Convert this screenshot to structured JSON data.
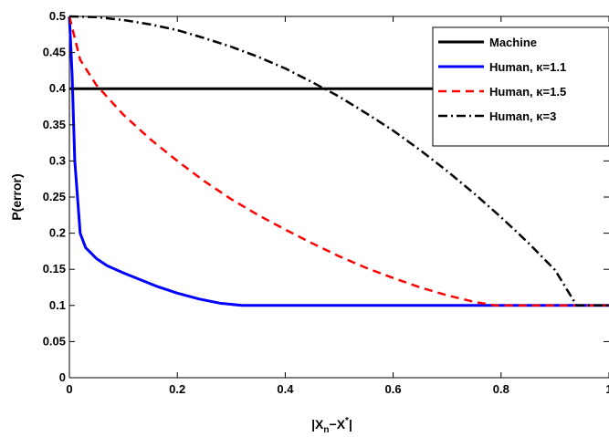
{
  "chart_data": {
    "type": "line",
    "title": "",
    "xlabel_main": "|X",
    "xlabel_sub": "n",
    "xlabel_mid": "−X",
    "xlabel_sup": "*",
    "xlabel_end": "|",
    "ylabel": "P(error)",
    "xlim": [
      0,
      1
    ],
    "ylim": [
      0,
      0.5
    ],
    "x_ticks": [
      "0",
      "0.2",
      "0.4",
      "0.6",
      "0.8",
      "1"
    ],
    "x_tick_values": [
      0,
      0.2,
      0.4,
      0.6,
      0.8,
      1
    ],
    "y_ticks": [
      "0",
      "0.05",
      "0.1",
      "0.15",
      "0.2",
      "0.25",
      "0.3",
      "0.35",
      "0.4",
      "0.45",
      "0.5"
    ],
    "y_tick_values": [
      0,
      0.05,
      0.1,
      0.15,
      0.2,
      0.25,
      0.3,
      0.35,
      0.4,
      0.45,
      0.5
    ],
    "grid": false,
    "legend_position": "top-right",
    "series": [
      {
        "name": "Machine",
        "color": "#000000",
        "style": "solid",
        "x": [
          0,
          1
        ],
        "y": [
          0.4,
          0.4
        ]
      },
      {
        "name": "Human, κ=1.1",
        "color": "#0000ff",
        "style": "solid",
        "x": [
          0,
          0.005,
          0.01,
          0.02,
          0.03,
          0.05,
          0.07,
          0.1,
          0.13,
          0.16,
          0.2,
          0.24,
          0.28,
          0.32,
          0.4,
          0.6,
          0.8,
          1.0
        ],
        "y": [
          0.5,
          0.42,
          0.3,
          0.2,
          0.18,
          0.165,
          0.155,
          0.145,
          0.136,
          0.127,
          0.117,
          0.109,
          0.103,
          0.1,
          0.1,
          0.1,
          0.1,
          0.1
        ]
      },
      {
        "name": "Human, κ=1.5",
        "color": "#ff0000",
        "style": "dashed",
        "x": [
          0,
          0.02,
          0.05,
          0.1,
          0.15,
          0.2,
          0.25,
          0.3,
          0.35,
          0.4,
          0.45,
          0.5,
          0.55,
          0.6,
          0.65,
          0.7,
          0.75,
          0.79,
          0.85,
          0.9,
          0.95,
          1.0
        ],
        "y": [
          0.5,
          0.44,
          0.405,
          0.364,
          0.33,
          0.3,
          0.272,
          0.247,
          0.225,
          0.205,
          0.186,
          0.168,
          0.152,
          0.138,
          0.125,
          0.114,
          0.105,
          0.1,
          0.1,
          0.1,
          0.1,
          0.1
        ]
      },
      {
        "name": "Human, κ=3",
        "color": "#000000",
        "style": "dashdot",
        "x": [
          0,
          0.05,
          0.1,
          0.15,
          0.2,
          0.25,
          0.3,
          0.35,
          0.4,
          0.45,
          0.5,
          0.55,
          0.6,
          0.65,
          0.7,
          0.75,
          0.8,
          0.85,
          0.9,
          0.94,
          0.97,
          1.0
        ],
        "y": [
          0.5,
          0.499,
          0.495,
          0.489,
          0.481,
          0.47,
          0.458,
          0.444,
          0.428,
          0.409,
          0.389,
          0.366,
          0.342,
          0.315,
          0.286,
          0.255,
          0.222,
          0.187,
          0.149,
          0.1,
          0.1,
          0.1
        ]
      }
    ]
  }
}
